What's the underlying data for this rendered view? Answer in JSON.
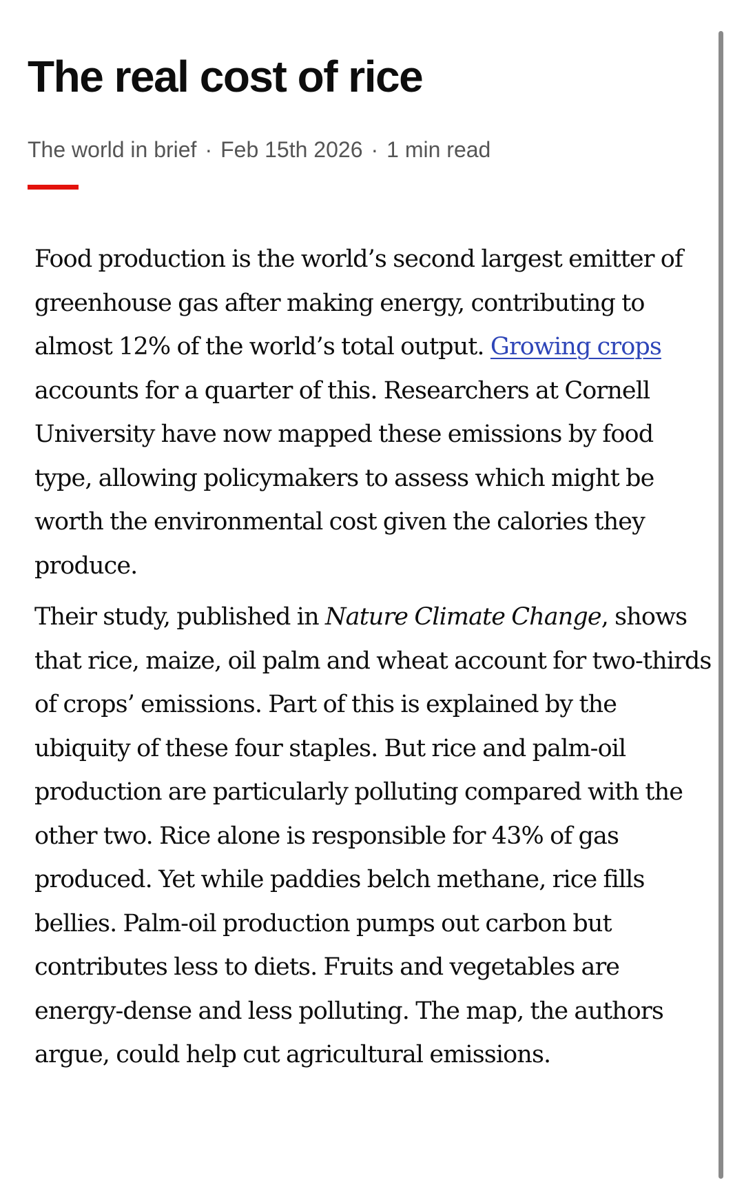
{
  "article": {
    "headline": "The real cost of rice",
    "meta": {
      "section": "The world in brief",
      "separator": "·",
      "date": "Feb 15th 2026",
      "read_time": "1 min read"
    },
    "paragraphs": [
      {
        "before_link": "Food production is the world’s second largest emitter of greenhouse gas after making energy, contributing to almost 12% of the world’s total output. ",
        "link_text": "Growing crops",
        "after_link": " accounts for a quarter of this. Researchers at Cornell University have now mapped these emissions by food type, allowing policymakers to assess which might be worth the environmental cost given the calories they produce."
      },
      {
        "before_italic": "Their study, published in ",
        "italic_text": "Nature Climate Change",
        "after_italic": ", shows that rice, maize, oil palm and wheat account for two-thirds of crops’ emissions. Part of this is explained by the ubiquity of these four staples. But rice and palm-oil production are particularly polluting compared with the other two. Rice alone is responsible for 43% of gas produced. Yet while paddies belch methane, rice fills bellies. Palm-oil production pumps out carbon but contributes less to diets. Fruits and vegetables are energy-dense and less polluting. The map, the authors argue, could help cut agricultural emissions."
      }
    ]
  },
  "colors": {
    "accent_rule": "#e3120b",
    "link": "#2e45b8",
    "text": "#0d0d0d",
    "meta_text": "#555555",
    "scrollbar": "#8a8a8a"
  }
}
